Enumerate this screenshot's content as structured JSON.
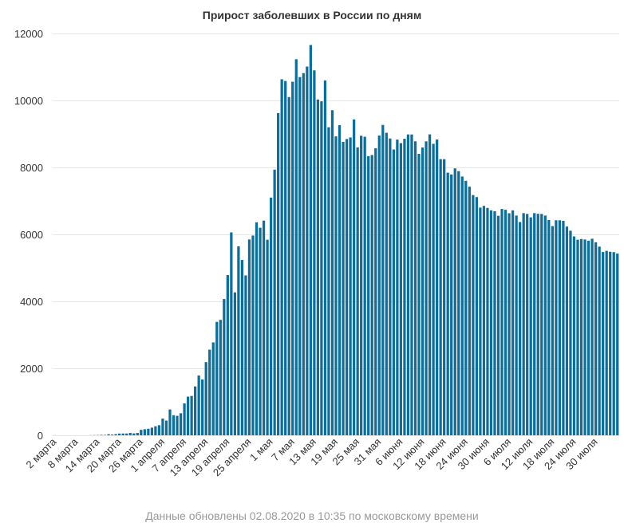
{
  "chart_data": {
    "type": "bar",
    "title": "Прирост заболевших в России по дням",
    "xlabel": "",
    "ylabel": "",
    "ylim": [
      0,
      12000
    ],
    "yticks": [
      0,
      2000,
      4000,
      6000,
      8000,
      10000,
      12000
    ],
    "grid": true,
    "legend": "none",
    "bar_color": "#0f6e98",
    "x_tick_labels": [
      "2 марта",
      "8 марта",
      "14 марта",
      "20 марта",
      "26 марта",
      "1 апреля",
      "7 апреля",
      "13 апреля",
      "19 апреля",
      "25 апреля",
      "1 мая",
      "7 мая",
      "13 мая",
      "19 мая",
      "25 мая",
      "31 мая",
      "6 июня",
      "12 июня",
      "18 июня",
      "24 июня",
      "30 июня",
      "6 июля",
      "12 июля",
      "18 июля",
      "24 июля",
      "30 июля"
    ],
    "x_tick_every": 6,
    "x_start": "2 марта",
    "x_end": "1 августа",
    "values": [
      2,
      0,
      0,
      0,
      0,
      0,
      0,
      0,
      0,
      0,
      3,
      6,
      8,
      13,
      11,
      33,
      21,
      35,
      52,
      53,
      54,
      71,
      57,
      71,
      163,
      182,
      196,
      228,
      270,
      302,
      501,
      440,
      771,
      601,
      582,
      658,
      954,
      1154,
      1175,
      1459,
      1786,
      1667,
      2186,
      2558,
      2774,
      3388,
      3448,
      4070,
      4785,
      6060,
      4268,
      5642,
      5236,
      4774,
      5849,
      5966,
      6361,
      6198,
      6411,
      5841,
      7099,
      7933,
      9623,
      10633,
      10581,
      10102,
      10559,
      11231,
      10699,
      10817,
      11012,
      11656,
      10899,
      10028,
      9974,
      10598,
      9200,
      9709,
      8926,
      9263,
      8764,
      8849,
      8894,
      9434,
      8599,
      8946,
      8915,
      8338,
      8371,
      8572,
      8952,
      9268,
      9035,
      8863,
      8536,
      8831,
      8726,
      8855,
      8985,
      8984,
      8779,
      8404,
      8595,
      8779,
      8987,
      8706,
      8835,
      8248,
      8246,
      7843,
      7790,
      7972,
      7889,
      7728,
      7600,
      7425,
      7176,
      7113,
      6800,
      6852,
      6791,
      6719,
      6693,
      6556,
      6760,
      6736,
      6632,
      6718,
      6562,
      6368,
      6635,
      6611,
      6509,
      6635,
      6615,
      6611,
      6562,
      6428,
      6248,
      6422,
      6422,
      6406,
      6234,
      6109,
      5940,
      5842,
      5862,
      5848,
      5811,
      5871,
      5765,
      5635,
      5475,
      5509,
      5482,
      5471,
      5427
    ],
    "footnote": "Данные обновлены 02.08.2020 в 10:35 по московскому времени"
  }
}
